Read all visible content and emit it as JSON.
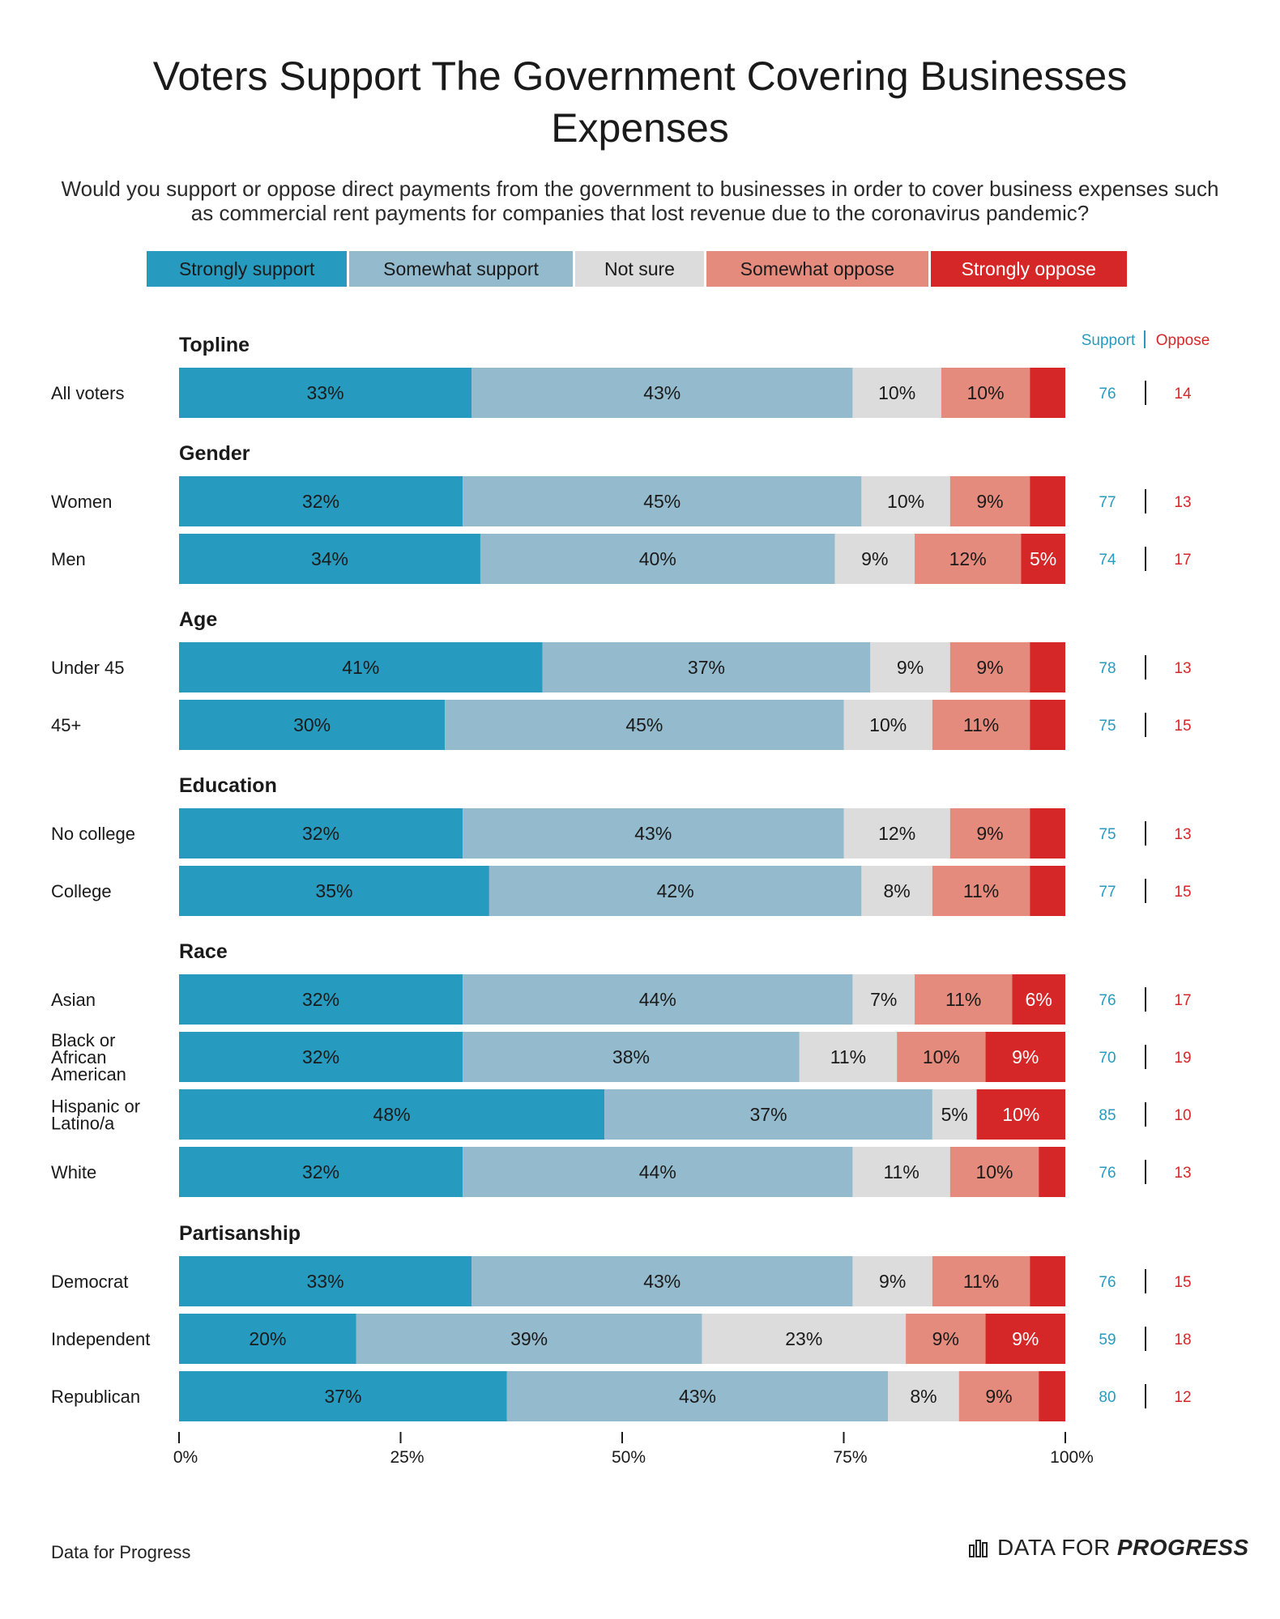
{
  "chart_data": {
    "type": "bar",
    "title": "Voters Support The Government Covering Businesses Expenses",
    "subtitle": "Would you support or oppose direct payments from the government to businesses in order to cover business expenses such as commercial rent payments for companies that lost revenue due to the coronavirus pandemic?",
    "stacked": true,
    "orientation": "horizontal",
    "xlim": [
      0,
      100
    ],
    "x_ticks": [
      "0%",
      "25%",
      "50%",
      "75%",
      "100%"
    ],
    "series": [
      {
        "name": "Strongly support",
        "color": "#269bbf"
      },
      {
        "name": "Somewhat support",
        "color": "#93bbcd"
      },
      {
        "name": "Not sure",
        "color": "#dcdcdc"
      },
      {
        "name": "Somewhat oppose",
        "color": "#e58b7d"
      },
      {
        "name": "Strongly oppose",
        "color": "#d62728"
      }
    ],
    "summary_headers": {
      "support": "Support",
      "oppose": "Oppose"
    },
    "groups": [
      {
        "heading": "Topline",
        "rows": [
          {
            "label": [
              "All voters"
            ],
            "values": [
              33,
              43,
              10,
              10,
              4
            ],
            "labels": [
              "33%",
              "43%",
              "10%",
              "10%",
              ""
            ],
            "support": "76",
            "oppose": "14"
          }
        ]
      },
      {
        "heading": "Gender",
        "rows": [
          {
            "label": [
              "Women"
            ],
            "values": [
              32,
              45,
              10,
              9,
              4
            ],
            "labels": [
              "32%",
              "45%",
              "10%",
              "9%",
              ""
            ],
            "support": "77",
            "oppose": "13"
          },
          {
            "label": [
              "Men"
            ],
            "values": [
              34,
              40,
              9,
              12,
              5
            ],
            "labels": [
              "34%",
              "40%",
              "9%",
              "12%",
              "5%"
            ],
            "support": "74",
            "oppose": "17"
          }
        ]
      },
      {
        "heading": "Age",
        "rows": [
          {
            "label": [
              "Under 45"
            ],
            "values": [
              41,
              37,
              9,
              9,
              4
            ],
            "labels": [
              "41%",
              "37%",
              "9%",
              "9%",
              ""
            ],
            "support": "78",
            "oppose": "13"
          },
          {
            "label": [
              "45+"
            ],
            "values": [
              30,
              45,
              10,
              11,
              4
            ],
            "labels": [
              "30%",
              "45%",
              "10%",
              "11%",
              ""
            ],
            "support": "75",
            "oppose": "15"
          }
        ]
      },
      {
        "heading": "Education",
        "rows": [
          {
            "label": [
              "No college"
            ],
            "values": [
              32,
              43,
              12,
              9,
              4
            ],
            "labels": [
              "32%",
              "43%",
              "12%",
              "9%",
              ""
            ],
            "support": "75",
            "oppose": "13"
          },
          {
            "label": [
              "College"
            ],
            "values": [
              35,
              42,
              8,
              11,
              4
            ],
            "labels": [
              "35%",
              "42%",
              "8%",
              "11%",
              ""
            ],
            "support": "77",
            "oppose": "15"
          }
        ]
      },
      {
        "heading": "Race",
        "rows": [
          {
            "label": [
              "Asian"
            ],
            "values": [
              32,
              44,
              7,
              11,
              6
            ],
            "labels": [
              "32%",
              "44%",
              "7%",
              "11%",
              "6%"
            ],
            "support": "76",
            "oppose": "17"
          },
          {
            "label": [
              "Black or",
              "African",
              "American"
            ],
            "values": [
              32,
              38,
              11,
              10,
              9
            ],
            "labels": [
              "32%",
              "38%",
              "11%",
              "10%",
              "9%"
            ],
            "support": "70",
            "oppose": "19"
          },
          {
            "label": [
              "Hispanic or",
              "Latino/a"
            ],
            "values": [
              48,
              37,
              5,
              0,
              10
            ],
            "labels": [
              "48%",
              "37%",
              "5%",
              "",
              "10%"
            ],
            "support": "85",
            "oppose": "10"
          },
          {
            "label": [
              "White"
            ],
            "values": [
              32,
              44,
              11,
              10,
              3
            ],
            "labels": [
              "32%",
              "44%",
              "11%",
              "10%",
              ""
            ],
            "support": "76",
            "oppose": "13"
          }
        ]
      },
      {
        "heading": "Partisanship",
        "rows": [
          {
            "label": [
              "Democrat"
            ],
            "values": [
              33,
              43,
              9,
              11,
              4
            ],
            "labels": [
              "33%",
              "43%",
              "9%",
              "11%",
              ""
            ],
            "support": "76",
            "oppose": "15"
          },
          {
            "label": [
              "Independent"
            ],
            "values": [
              20,
              39,
              23,
              9,
              9
            ],
            "labels": [
              "20%",
              "39%",
              "23%",
              "9%",
              "9%"
            ],
            "support": "59",
            "oppose": "18"
          },
          {
            "label": [
              "Republican"
            ],
            "values": [
              37,
              43,
              8,
              9,
              3
            ],
            "labels": [
              "37%",
              "43%",
              "8%",
              "9%",
              ""
            ],
            "support": "80",
            "oppose": "12"
          }
        ]
      }
    ]
  },
  "footer": {
    "source": "Data for Progress",
    "brand_light": "DATA FOR",
    "brand_bold": "PROGRESS",
    "brand_icon": "bar-chart-icon"
  }
}
